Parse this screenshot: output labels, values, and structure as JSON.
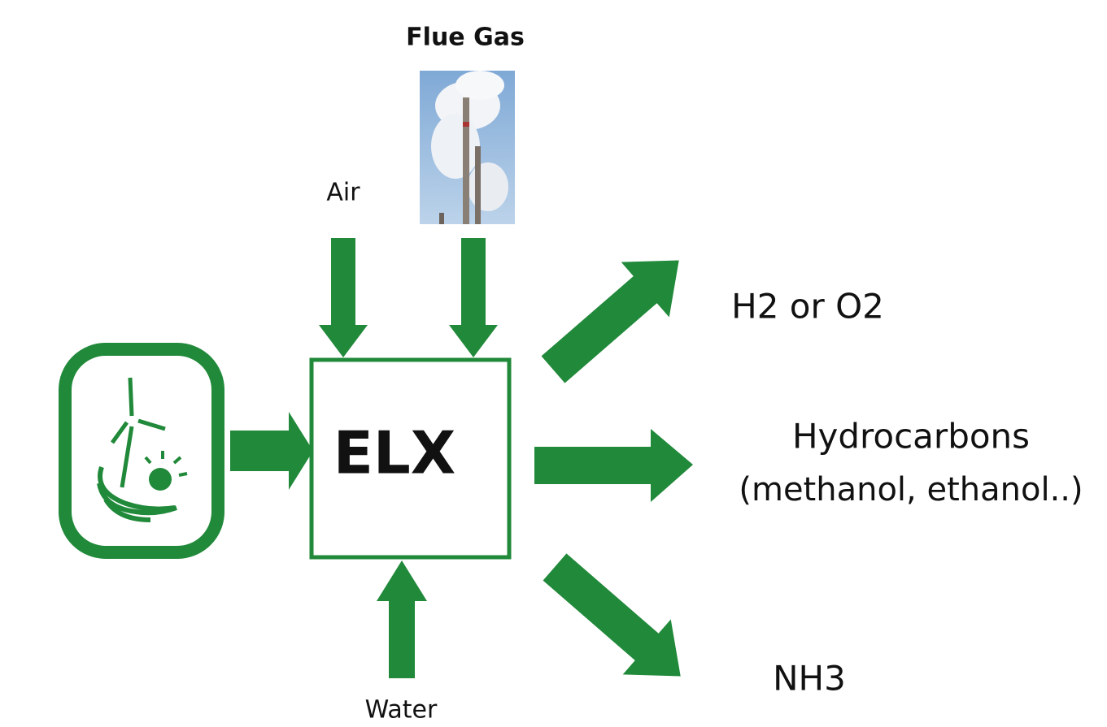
{
  "inputs": [
    {
      "label": "Flue Gas"
    },
    {
      "label": "Air"
    },
    {
      "label": "Water"
    }
  ],
  "process": {
    "label": "ELX"
  },
  "outputs": [
    {
      "lines": [
        "H2 or O2"
      ]
    },
    {
      "lines": [
        "Hydrocarbons",
        "(methanol, ethanol..)"
      ]
    },
    {
      "lines": [
        "NH3"
      ]
    }
  ]
}
